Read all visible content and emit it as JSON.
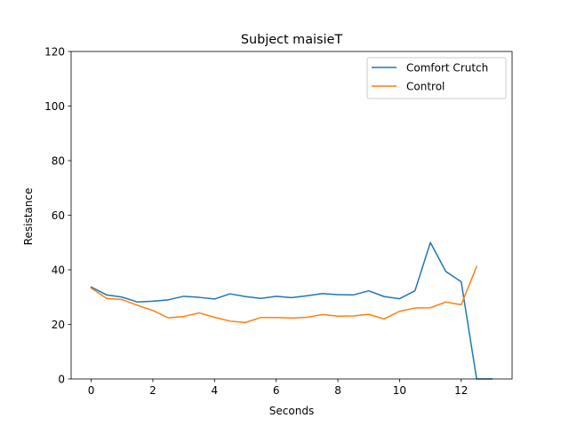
{
  "chart_data": {
    "type": "line",
    "title": "Subject maisieT",
    "xlabel": "Seconds",
    "ylabel": "Resistance",
    "xlim": [
      -0.65,
      13.65
    ],
    "ylim": [
      0,
      120
    ],
    "xticks": [
      0,
      2,
      4,
      6,
      8,
      10,
      12
    ],
    "yticks": [
      0,
      20,
      40,
      60,
      80,
      100,
      120
    ],
    "grid": false,
    "legend_position": "top-right",
    "series": [
      {
        "name": "Comfort Crutch",
        "color": "#1f77b4",
        "x": [
          0,
          0.5,
          1,
          1.5,
          2,
          2.5,
          3,
          3.5,
          4,
          4.5,
          5,
          5.5,
          6,
          6.5,
          7,
          7.5,
          8,
          8.5,
          9,
          9.5,
          10,
          10.5,
          11,
          11.5,
          12,
          12.5,
          13
        ],
        "values": [
          33.7,
          30.8,
          30.0,
          28.2,
          28.5,
          29.0,
          30.3,
          29.9,
          29.3,
          31.2,
          30.2,
          29.5,
          30.3,
          29.8,
          30.5,
          31.3,
          30.9,
          30.8,
          32.3,
          30.2,
          29.4,
          32.3,
          50.0,
          39.4,
          35.6,
          0,
          0
        ]
      },
      {
        "name": "Control",
        "color": "#ff7f0e",
        "x": [
          0,
          0.5,
          1,
          1.5,
          2,
          2.5,
          3,
          3.5,
          4,
          4.5,
          5,
          5.5,
          6,
          6.5,
          7,
          7.5,
          8,
          8.5,
          9,
          9.5,
          10,
          10.5,
          11,
          11.5,
          12,
          12.5
        ],
        "values": [
          33.3,
          29.5,
          29.1,
          27.0,
          25.1,
          22.4,
          22.9,
          24.2,
          22.6,
          21.2,
          20.7,
          22.5,
          22.5,
          22.3,
          22.6,
          23.6,
          23.0,
          23.1,
          23.7,
          22.0,
          24.8,
          26.0,
          26.1,
          28.2,
          27.2,
          41.2
        ]
      }
    ]
  }
}
